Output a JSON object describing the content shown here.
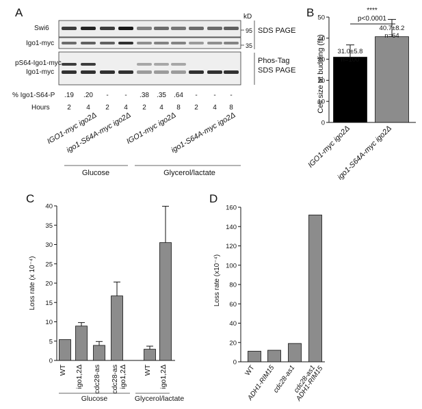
{
  "panels": {
    "A": {
      "letter": "A",
      "kd_label": "kD",
      "row_labels": [
        "Swi6",
        "Igo1-myc",
        "pS64-Igo1-myc",
        "Igo1-myc"
      ],
      "kd_markers": [
        "95",
        "35"
      ],
      "right_labels": [
        "SDS PAGE",
        "Phos-Tag",
        "SDS PAGE"
      ],
      "pct_label": "% Igo1-S64-P",
      "pct_values": [
        ".19",
        ".20",
        "-",
        "-",
        ".38",
        ".35",
        ".64",
        "-",
        "-",
        "-"
      ],
      "hours_label": "Hours",
      "hours_values": [
        "2",
        "4",
        "2",
        "4",
        "2",
        "4",
        "8",
        "2",
        "4",
        "8"
      ],
      "strains": [
        "IGO1-myc igo2Δ",
        "igo1-S64A-myc igo2Δ",
        "IGO1-myc igo2Δ",
        "igo1-S64A-myc igo2Δ"
      ],
      "groups": [
        "Glucose",
        "Glycerol/lactate"
      ]
    },
    "B": {
      "letter": "B",
      "ylabel": "Cell size at budding (fL)",
      "significance": "****",
      "pvalue": "p<0.0001",
      "bar_labels": [
        "31.0±5.8",
        "n=100",
        "40.7±8.2",
        "n=64"
      ]
    },
    "C": {
      "letter": "C",
      "ylabel": "Loss rate (x 10⁻⁴)",
      "groups": [
        "Glucose",
        "Glycerol/lactate"
      ]
    },
    "D": {
      "letter": "D",
      "ylabel": "Loss rate (x10⁻⁴)"
    }
  },
  "chart_data": [
    {
      "type": "bar",
      "panel": "B",
      "categories": [
        "IGO1-myc igo2Δ",
        "igo1-S64A-myc igo2Δ"
      ],
      "values": [
        31.0,
        40.7
      ],
      "errors": [
        5.8,
        8.2
      ],
      "colors": [
        "#000000",
        "#8c8c8c"
      ],
      "ylabel": "Cell size at budding (fL)",
      "ylim": [
        0,
        50
      ],
      "yticks": [
        0,
        10,
        20,
        30,
        40,
        50
      ]
    },
    {
      "type": "bar",
      "panel": "C",
      "categories": [
        "WT",
        "igo1,2Δ",
        "cdc28-as",
        "cdc28-as igo1,2Δ",
        "WT",
        "igo1,2Δ"
      ],
      "values": [
        5.4,
        8.9,
        3.9,
        16.7,
        2.9,
        30.5
      ],
      "errors": [
        0,
        0.9,
        1.0,
        3.6,
        0.8,
        9.4
      ],
      "color": "#8c8c8c",
      "ylabel": "Loss rate (x 10⁻⁴)",
      "ylim": [
        0,
        40
      ],
      "yticks": [
        0,
        5,
        10,
        15,
        20,
        25,
        30,
        35,
        40
      ]
    },
    {
      "type": "bar",
      "panel": "D",
      "categories": [
        "WT",
        "ADH1-RIM15",
        "cdc28-as1",
        "cdc28-as1 ADH1-RIM15"
      ],
      "values": [
        11,
        12,
        19,
        152
      ],
      "color": "#8c8c8c",
      "ylabel": "Loss rate (x10⁻⁴)",
      "ylim": [
        0,
        160
      ],
      "yticks": [
        0,
        20,
        40,
        60,
        80,
        100,
        120,
        140,
        160
      ]
    }
  ]
}
